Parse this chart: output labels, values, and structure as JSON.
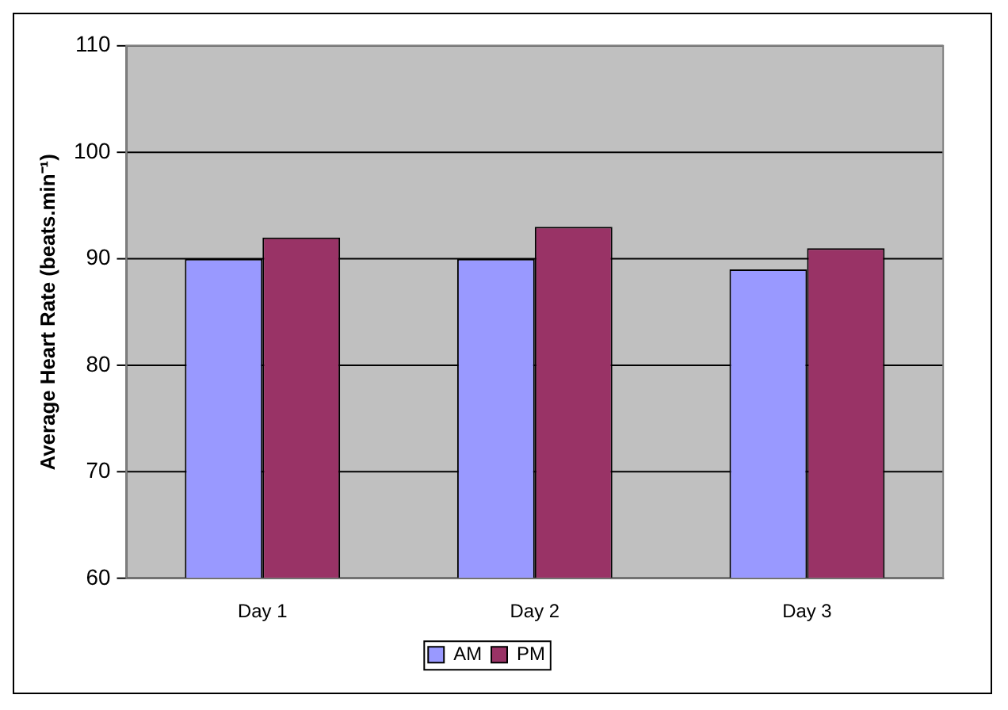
{
  "chart_data": {
    "type": "bar",
    "ylabel": "Average Heart Rate (beats.min⁻¹)",
    "categories": [
      "Day 1",
      "Day 2",
      "Day 3"
    ],
    "series": [
      {
        "name": "AM",
        "color": "#9999ff",
        "values": [
          90,
          90,
          89
        ]
      },
      {
        "name": "PM",
        "color": "#993366",
        "values": [
          92,
          93,
          91
        ]
      }
    ],
    "ylim": [
      60,
      110
    ],
    "yticks": [
      60,
      70,
      80,
      90,
      100,
      110
    ],
    "grid": "y",
    "legend": "bottom"
  }
}
